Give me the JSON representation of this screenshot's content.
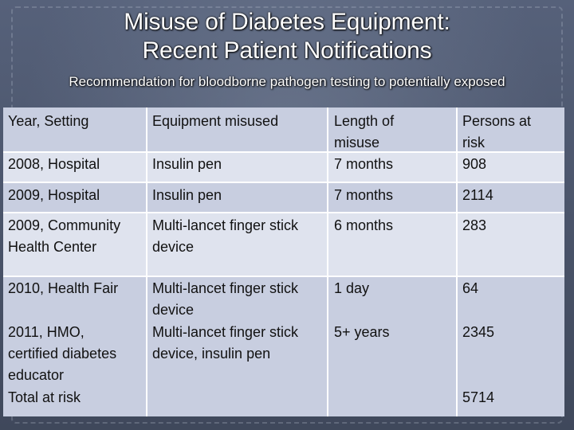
{
  "slide": {
    "title_line1": "Misuse of Diabetes Equipment:",
    "title_line2": "Recent Patient Notifications",
    "subtitle": "Recommendation for bloodborne pathogen testing to potentially exposed"
  },
  "table": {
    "headers": {
      "col1": "Year, Setting",
      "col2": "Equipment misused",
      "col3_l1": "Length of",
      "col3_l2": "misuse",
      "col4_l1": "Persons at",
      "col4_l2": "risk"
    },
    "rows": [
      {
        "setting": "2008, Hospital",
        "equipment": "Insulin pen",
        "length": "7 months",
        "persons": "908"
      },
      {
        "setting": "2009, Hospital",
        "equipment": "Insulin pen",
        "length": "7 months",
        "persons": "2114"
      },
      {
        "setting_l1": "2009, Community",
        "setting_l2": "Health Center",
        "equipment_l1": "Multi-lancet finger stick",
        "equipment_l2": "device",
        "length": "6 months",
        "persons": "283"
      },
      {
        "setting": "2010, Health Fair",
        "equipment_l1": "Multi-lancet finger stick",
        "equipment_l2": "device",
        "length": "1 day",
        "persons": "64"
      },
      {
        "setting_l1": "2011, HMO,",
        "setting_l2": "certified diabetes",
        "setting_l3": "educator",
        "equipment_l1": "Multi-lancet finger stick",
        "equipment_l2": "device, insulin pen",
        "length": "5+ years",
        "persons": "2345"
      }
    ],
    "total": {
      "label": "Total at risk",
      "persons": "5714"
    }
  }
}
